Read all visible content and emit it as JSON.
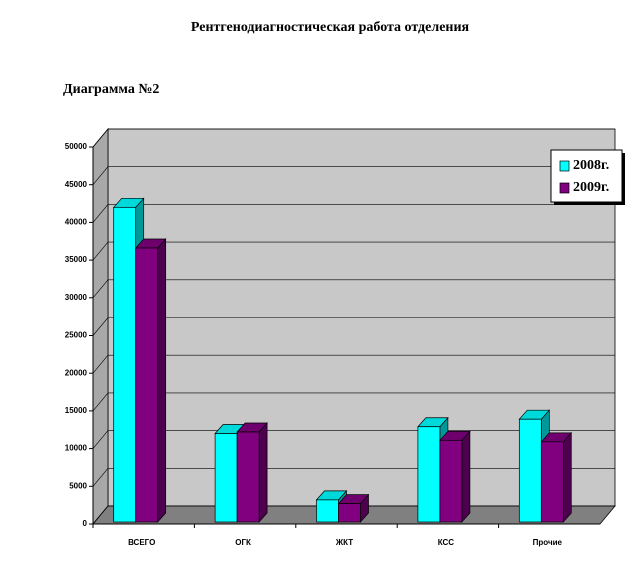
{
  "chart_data": {
    "type": "bar3d",
    "title": "Рентгенодиагностическая работа  отделения",
    "subtitle": "Диаграмма №2",
    "categories": [
      "ВСЕГО",
      "ОГК",
      "ЖКТ",
      "КСС",
      "Прочие"
    ],
    "series": [
      {
        "name": "2008г.",
        "color": "#00ffff",
        "values": [
          42000,
          12000,
          3200,
          12900,
          13900
        ]
      },
      {
        "name": "2009г.",
        "color": "#800080",
        "values": [
          36600,
          12200,
          2700,
          11100,
          10900
        ]
      }
    ],
    "ylim": [
      0,
      50000
    ],
    "yticks": [
      0,
      5000,
      10000,
      15000,
      20000,
      25000,
      30000,
      35000,
      40000,
      45000,
      50000
    ],
    "grid": true
  }
}
